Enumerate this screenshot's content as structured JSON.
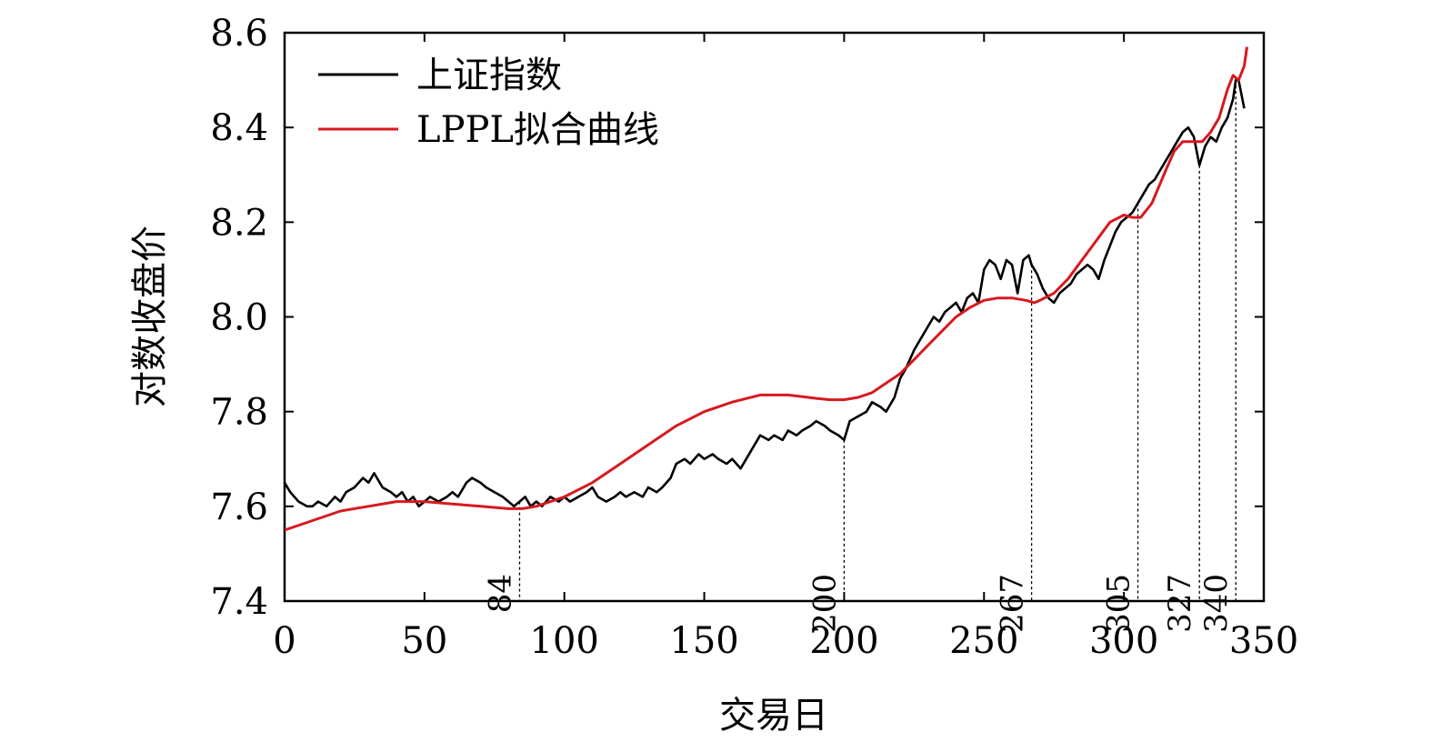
{
  "chart_data": {
    "type": "line",
    "title": "",
    "xlabel": "交易日",
    "ylabel": "对数收盘价",
    "xlim": [
      0,
      350
    ],
    "ylim": [
      7.4,
      8.6
    ],
    "xticks": [
      "0",
      "50",
      "100",
      "150",
      "200",
      "250",
      "300",
      "350"
    ],
    "yticks": [
      "7.4",
      "7.6",
      "7.8",
      "8.0",
      "8.2",
      "8.4",
      "8.6"
    ],
    "legend_position": "top-left",
    "grid": false,
    "markers": [
      {
        "label": "84",
        "x": 84
      },
      {
        "label": "200",
        "x": 200
      },
      {
        "label": "267",
        "x": 267
      },
      {
        "label": "305",
        "x": 305
      },
      {
        "label": "327",
        "x": 327
      },
      {
        "label": "340",
        "x": 340
      }
    ],
    "series": [
      {
        "name": "上证指数",
        "color": "#000000",
        "x": [
          0,
          2,
          5,
          8,
          10,
          12,
          15,
          18,
          20,
          22,
          25,
          28,
          30,
          32,
          35,
          38,
          40,
          42,
          44,
          46,
          48,
          50,
          52,
          55,
          58,
          60,
          62,
          65,
          67,
          70,
          72,
          75,
          78,
          80,
          82,
          84,
          86,
          88,
          90,
          92,
          95,
          98,
          100,
          102,
          105,
          108,
          110,
          112,
          115,
          118,
          120,
          122,
          125,
          128,
          130,
          133,
          135,
          138,
          140,
          143,
          145,
          148,
          150,
          153,
          155,
          158,
          160,
          163,
          165,
          168,
          170,
          173,
          175,
          178,
          180,
          183,
          185,
          188,
          190,
          193,
          195,
          198,
          200,
          202,
          205,
          208,
          210,
          213,
          215,
          218,
          220,
          222,
          225,
          227,
          228,
          230,
          232,
          234,
          236,
          238,
          240,
          242,
          244,
          246,
          248,
          250,
          252,
          254,
          256,
          258,
          260,
          262,
          264,
          266,
          267,
          269,
          271,
          273,
          275,
          277,
          279,
          281,
          283,
          285,
          287,
          289,
          291,
          293,
          295,
          297,
          299,
          301,
          303,
          305,
          307,
          309,
          311,
          313,
          315,
          317,
          319,
          321,
          323,
          325,
          327,
          329,
          331,
          333,
          335,
          337,
          339,
          340,
          341,
          342,
          343
        ],
        "values": [
          7.65,
          7.63,
          7.61,
          7.6,
          7.6,
          7.61,
          7.6,
          7.62,
          7.61,
          7.63,
          7.64,
          7.66,
          7.65,
          7.67,
          7.64,
          7.63,
          7.62,
          7.63,
          7.61,
          7.62,
          7.6,
          7.61,
          7.62,
          7.61,
          7.62,
          7.63,
          7.62,
          7.65,
          7.66,
          7.65,
          7.64,
          7.63,
          7.62,
          7.61,
          7.6,
          7.61,
          7.62,
          7.6,
          7.61,
          7.6,
          7.62,
          7.61,
          7.62,
          7.61,
          7.62,
          7.63,
          7.64,
          7.62,
          7.61,
          7.62,
          7.63,
          7.62,
          7.63,
          7.62,
          7.64,
          7.63,
          7.64,
          7.66,
          7.69,
          7.7,
          7.69,
          7.71,
          7.7,
          7.71,
          7.7,
          7.69,
          7.7,
          7.68,
          7.7,
          7.73,
          7.75,
          7.74,
          7.75,
          7.74,
          7.76,
          7.75,
          7.76,
          7.77,
          7.78,
          7.77,
          7.76,
          7.75,
          7.74,
          7.78,
          7.79,
          7.8,
          7.82,
          7.81,
          7.8,
          7.83,
          7.87,
          7.89,
          7.93,
          7.95,
          7.96,
          7.98,
          8.0,
          7.99,
          8.01,
          8.02,
          8.03,
          8.01,
          8.04,
          8.05,
          8.03,
          8.1,
          8.12,
          8.11,
          8.08,
          8.12,
          8.11,
          8.05,
          8.12,
          8.13,
          8.11,
          8.09,
          8.06,
          8.04,
          8.03,
          8.05,
          8.06,
          8.07,
          8.09,
          8.1,
          8.11,
          8.1,
          8.08,
          8.12,
          8.15,
          8.18,
          8.2,
          8.21,
          8.22,
          8.24,
          8.26,
          8.28,
          8.29,
          8.31,
          8.33,
          8.35,
          8.37,
          8.39,
          8.4,
          8.38,
          8.32,
          8.36,
          8.38,
          8.37,
          8.4,
          8.42,
          8.46,
          8.5,
          8.5,
          8.47,
          8.44
        ]
      },
      {
        "name": "LPPL拟合曲线",
        "color": "#d71920",
        "x": [
          0,
          10,
          20,
          30,
          40,
          50,
          60,
          70,
          80,
          85,
          90,
          100,
          110,
          120,
          130,
          140,
          150,
          160,
          170,
          175,
          180,
          190,
          195,
          200,
          205,
          210,
          215,
          220,
          225,
          230,
          235,
          240,
          245,
          250,
          255,
          260,
          265,
          268,
          270,
          275,
          280,
          285,
          290,
          295,
          300,
          303,
          306,
          310,
          315,
          318,
          321,
          325,
          328,
          331,
          334,
          337,
          339,
          341,
          343,
          344
        ],
        "values": [
          7.55,
          7.57,
          7.59,
          7.6,
          7.61,
          7.61,
          7.605,
          7.6,
          7.595,
          7.595,
          7.6,
          7.62,
          7.65,
          7.69,
          7.73,
          7.77,
          7.8,
          7.82,
          7.835,
          7.835,
          7.835,
          7.828,
          7.825,
          7.825,
          7.83,
          7.84,
          7.86,
          7.88,
          7.91,
          7.94,
          7.97,
          8.0,
          8.02,
          8.035,
          8.04,
          8.04,
          8.035,
          8.03,
          8.035,
          8.05,
          8.08,
          8.12,
          8.16,
          8.2,
          8.215,
          8.21,
          8.21,
          8.24,
          8.31,
          8.35,
          8.37,
          8.37,
          8.37,
          8.39,
          8.42,
          8.48,
          8.51,
          8.5,
          8.53,
          8.57
        ]
      }
    ]
  }
}
